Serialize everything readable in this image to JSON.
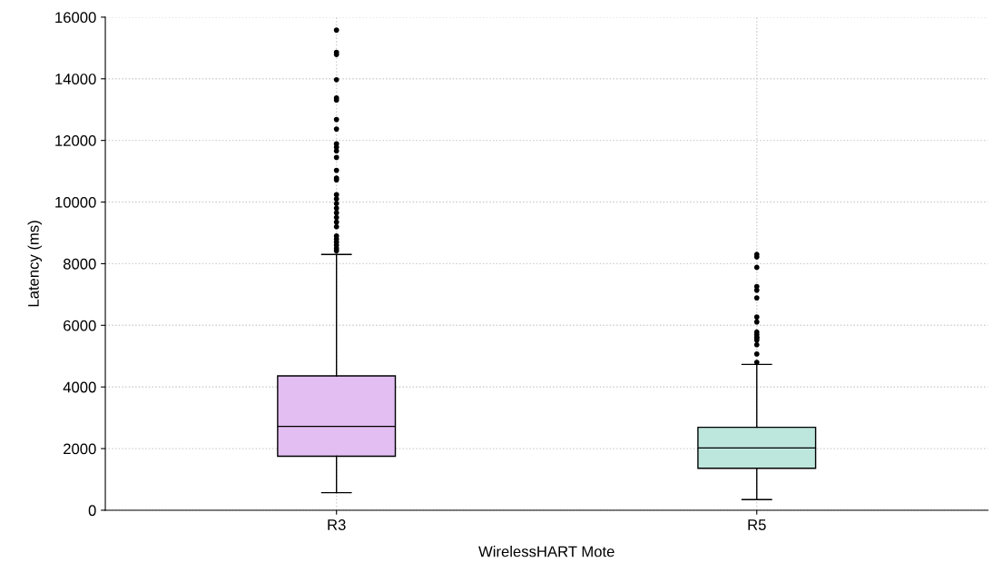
{
  "chart_data": {
    "type": "box",
    "xlabel": "WirelessHART Mote",
    "ylabel": "Latency (ms)",
    "categories": [
      "R3",
      "R5"
    ],
    "colors": [
      "#e3bef2",
      "#bde6dc"
    ],
    "boxes": [
      {
        "low": 570,
        "q1": 1750,
        "median": 2720,
        "q3": 4360,
        "high": 8300,
        "outliers": [
          15580,
          14860,
          14790,
          13970,
          13380,
          13310,
          12680,
          12370,
          11890,
          11780,
          11660,
          11450,
          11030,
          10780,
          10720,
          10240,
          10100,
          9950,
          9800,
          9650,
          9500,
          9350,
          9200,
          8900,
          8800,
          8700,
          8600,
          8500,
          8420
        ]
      },
      {
        "low": 345,
        "q1": 1360,
        "median": 2020,
        "q3": 2690,
        "high": 4730,
        "outliers": [
          8300,
          8220,
          7880,
          7260,
          7140,
          6890,
          6270,
          6110,
          5780,
          5700,
          5620,
          5590,
          5520,
          5370,
          5070,
          4800
        ]
      }
    ],
    "ylim": [
      0,
      16000
    ],
    "yticks": [
      0,
      2000,
      4000,
      6000,
      8000,
      10000,
      12000,
      14000,
      16000
    ],
    "grid": true
  }
}
